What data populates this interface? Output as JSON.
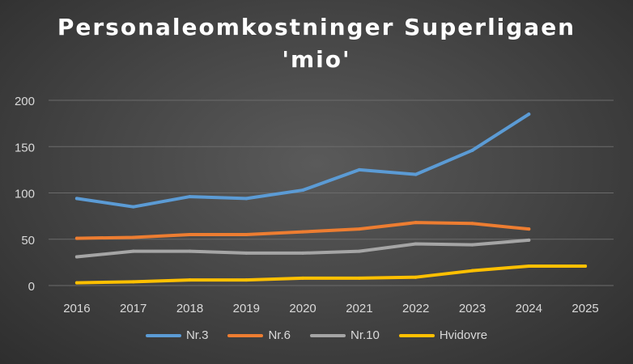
{
  "chart_data": {
    "type": "line",
    "title_line1": "Personaleomkostninger Superligaen",
    "title_line2": "'mio'",
    "categories": [
      "2016",
      "2017",
      "2018",
      "2019",
      "2020",
      "2021",
      "2022",
      "2023",
      "2024",
      "2025"
    ],
    "ylim": [
      0,
      200
    ],
    "yticks": [
      "0",
      "50",
      "100",
      "150",
      "200"
    ],
    "grid": true,
    "legend_position": "bottom",
    "series": [
      {
        "name": "Nr.3",
        "color": "#5b9bd5",
        "values": [
          94,
          85,
          96,
          94,
          103,
          125,
          120,
          146,
          185,
          null
        ]
      },
      {
        "name": "Nr.6",
        "color": "#ed7d31",
        "values": [
          51,
          52,
          55,
          55,
          58,
          61,
          68,
          67,
          61,
          null
        ]
      },
      {
        "name": "Nr.10",
        "color": "#a5a5a5",
        "values": [
          31,
          37,
          37,
          35,
          35,
          37,
          45,
          44,
          49,
          null
        ]
      },
      {
        "name": "Hvidovre",
        "color": "#ffc000",
        "values": [
          3,
          4,
          6,
          6,
          8,
          8,
          9,
          16,
          21,
          21
        ]
      }
    ]
  }
}
